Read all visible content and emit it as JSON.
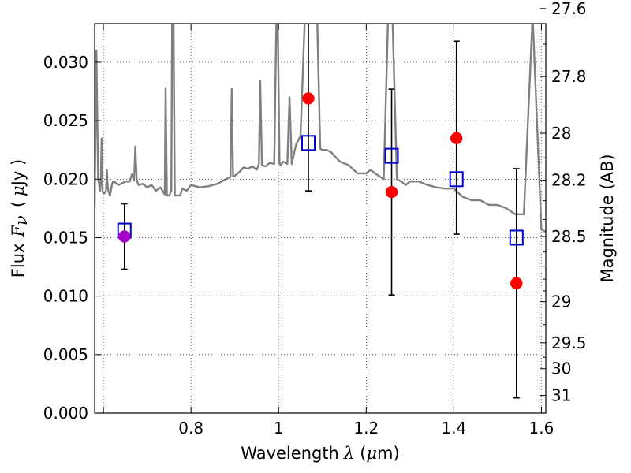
{
  "chart_data": {
    "type": "scatter",
    "title": "",
    "xlabel": "Wavelength",
    "xlabel_symbol": "λ",
    "xlabel_unit_open": "(",
    "xlabel_unit_mu": "μ",
    "xlabel_unit_rest": "m)",
    "ylabel": "Flux",
    "ylabel_symbol": "F",
    "ylabel_subscript": "ν",
    "ylabel_unit_open": "(",
    "ylabel_unit_mu": "μ",
    "ylabel_unit_rest": "Jy )",
    "y2label": "Magnitude (AB)",
    "xlim": [
      0.58,
      1.61
    ],
    "ylim": [
      0.0,
      0.0333
    ],
    "grid": true,
    "grid_style": "dotted",
    "xticks": [
      {
        "value": 0.6,
        "label": ""
      },
      {
        "value": 0.8,
        "label": "0.8"
      },
      {
        "value": 1.0,
        "label": "1"
      },
      {
        "value": 1.2,
        "label": "1.2"
      },
      {
        "value": 1.4,
        "label": "1.4"
      },
      {
        "value": 1.6,
        "label": "1.6"
      }
    ],
    "yticks": [
      {
        "value": 0.0,
        "label": "0.000"
      },
      {
        "value": 0.005,
        "label": "0.005"
      },
      {
        "value": 0.01,
        "label": "0.010"
      },
      {
        "value": 0.015,
        "label": "0.015"
      },
      {
        "value": 0.02,
        "label": "0.020"
      },
      {
        "value": 0.025,
        "label": "0.025"
      },
      {
        "value": 0.03,
        "label": "0.030"
      }
    ],
    "y2ticks": [
      {
        "label": "27.6",
        "mag": 27.6
      },
      {
        "label": "27.8",
        "mag": 27.8
      },
      {
        "label": "28",
        "mag": 28.0
      },
      {
        "label": "28.2",
        "mag": 28.2
      },
      {
        "label": "28.5",
        "mag": 28.5
      },
      {
        "label": "29",
        "mag": 29.0
      },
      {
        "label": "29.5",
        "mag": 29.5
      },
      {
        "label": "30",
        "mag": 30.0
      },
      {
        "label": "31",
        "mag": 31.0
      }
    ],
    "y2_minor_ticks_mag": [
      27.7,
      27.9,
      28.1,
      28.3,
      28.4,
      28.6,
      28.7,
      28.8,
      28.9,
      29.25,
      29.75,
      30.5
    ],
    "colors": {
      "template": "#808080",
      "observed": "#ff0000",
      "model": "#0000cc",
      "errorbar": "#000000",
      "blend": "#aa00cc"
    },
    "series": [
      {
        "name": "template-spectrum",
        "kind": "line",
        "x": [
          0.58,
          0.584,
          0.588,
          0.59,
          0.592,
          0.594,
          0.596,
          0.598,
          0.6,
          0.603,
          0.606,
          0.608,
          0.61,
          0.612,
          0.615,
          0.62,
          0.622,
          0.625,
          0.63,
          0.635,
          0.64,
          0.65,
          0.66,
          0.665,
          0.67,
          0.673,
          0.676,
          0.68,
          0.69,
          0.7,
          0.71,
          0.72,
          0.73,
          0.735,
          0.74,
          0.742,
          0.745,
          0.75,
          0.755,
          0.757,
          0.76,
          0.763,
          0.768,
          0.775,
          0.78,
          0.79,
          0.8,
          0.82,
          0.84,
          0.86,
          0.88,
          0.89,
          0.893,
          0.896,
          0.9,
          0.91,
          0.92,
          0.93,
          0.94,
          0.95,
          0.955,
          0.958,
          0.962,
          0.97,
          0.98,
          0.99,
          0.995,
          0.998,
          1.002,
          1.005,
          1.01,
          1.02,
          1.025,
          1.03,
          1.04,
          1.05,
          1.06,
          1.065,
          1.07,
          1.078,
          1.08,
          1.083,
          1.088,
          1.095,
          1.1,
          1.11,
          1.12,
          1.14,
          1.16,
          1.18,
          1.2,
          1.21,
          1.22,
          1.24,
          1.25,
          1.26,
          1.27,
          1.28,
          1.29,
          1.3,
          1.32,
          1.34,
          1.36,
          1.38,
          1.4,
          1.42,
          1.44,
          1.46,
          1.48,
          1.5,
          1.52,
          1.54,
          1.56,
          1.58,
          1.6,
          1.61
        ],
        "y": [
          0.0175,
          0.031,
          0.02,
          0.0196,
          0.019,
          0.0198,
          0.0235,
          0.019,
          0.0188,
          0.0188,
          0.019,
          0.0208,
          0.0193,
          0.0189,
          0.0186,
          0.0196,
          0.0198,
          0.0198,
          0.0196,
          0.0195,
          0.0196,
          0.0198,
          0.0198,
          0.0204,
          0.0199,
          0.0228,
          0.02,
          0.0195,
          0.0196,
          0.0193,
          0.0195,
          0.019,
          0.0193,
          0.019,
          0.0187,
          0.0278,
          0.0186,
          0.0186,
          0.019,
          0.034,
          0.034,
          0.0186,
          0.0186,
          0.0186,
          0.0192,
          0.019,
          0.0195,
          0.0193,
          0.0194,
          0.0196,
          0.02,
          0.0202,
          0.0277,
          0.0202,
          0.0203,
          0.0206,
          0.021,
          0.0209,
          0.0211,
          0.0208,
          0.0213,
          0.0284,
          0.0212,
          0.0211,
          0.0214,
          0.0213,
          0.034,
          0.034,
          0.0213,
          0.0212,
          0.0215,
          0.0213,
          0.027,
          0.0213,
          0.023,
          0.0237,
          0.034,
          0.034,
          0.034,
          0.034,
          0.034,
          0.034,
          0.034,
          0.0226,
          0.0225,
          0.0225,
          0.0223,
          0.0215,
          0.0212,
          0.0205,
          0.0205,
          0.0208,
          0.0205,
          0.02,
          0.034,
          0.034,
          0.02,
          0.0198,
          0.0195,
          0.0198,
          0.0198,
          0.0195,
          0.0193,
          0.0192,
          0.0192,
          0.0185,
          0.0182,
          0.0182,
          0.0178,
          0.0178,
          0.0175,
          0.017,
          0.017,
          0.034,
          0.0157,
          0.0155
        ]
      },
      {
        "name": "observed-photometry",
        "kind": "points",
        "points": [
          {
            "x": 1.068,
            "y": 0.0269,
            "yerr_low": 0.019,
            "yerr_high": 0.034
          },
          {
            "x": 1.258,
            "y": 0.0189,
            "yerr_low": 0.0101,
            "yerr_high": 0.0277
          },
          {
            "x": 1.406,
            "y": 0.0235,
            "yerr_low": 0.0153,
            "yerr_high": 0.0318
          },
          {
            "x": 1.543,
            "y": 0.0111,
            "yerr_low": 0.0013,
            "yerr_high": 0.0209
          }
        ]
      },
      {
        "name": "observed-blended",
        "kind": "points",
        "points": [
          {
            "x": 0.648,
            "y": 0.0151,
            "yerr_low": 0.0123,
            "yerr_high": 0.0179
          }
        ]
      },
      {
        "name": "model-photometry",
        "kind": "squares",
        "points": [
          {
            "x": 0.648,
            "y": 0.0156
          },
          {
            "x": 1.068,
            "y": 0.0231
          },
          {
            "x": 1.258,
            "y": 0.022
          },
          {
            "x": 1.406,
            "y": 0.02
          },
          {
            "x": 1.543,
            "y": 0.015
          }
        ]
      }
    ]
  }
}
